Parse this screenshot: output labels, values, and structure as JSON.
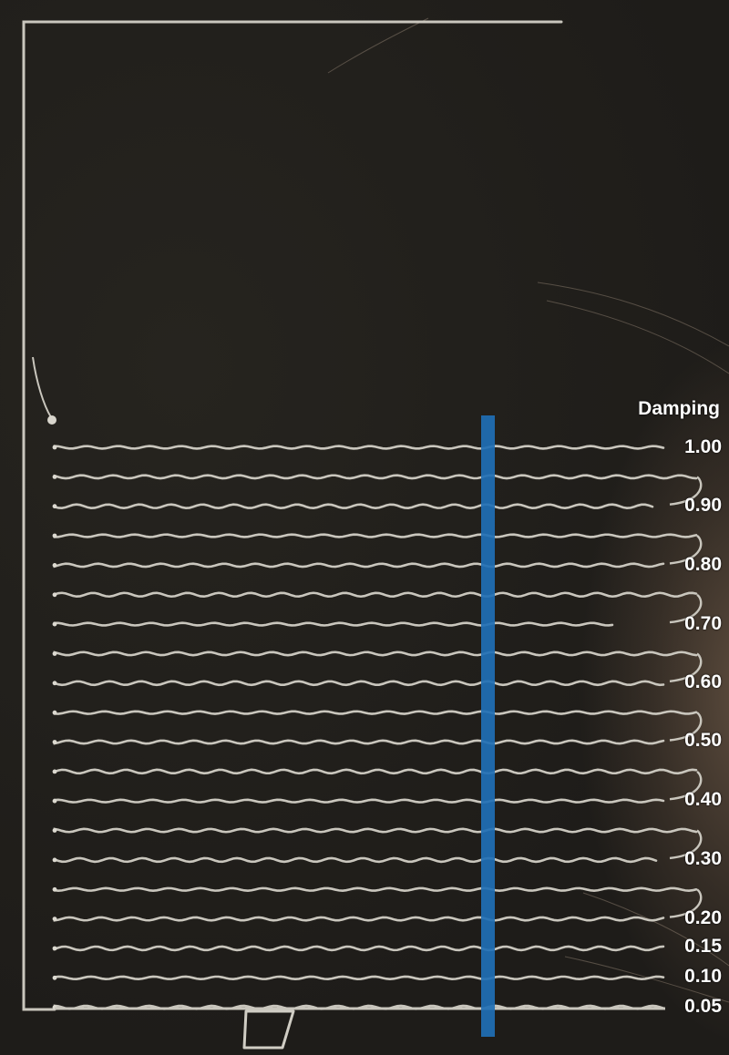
{
  "legend": {
    "title": "Damping",
    "values": [
      "1.00",
      "0.90",
      "0.80",
      "0.70",
      "0.60",
      "0.50",
      "0.40",
      "0.30",
      "0.20",
      "0.15",
      "0.10",
      "0.05"
    ]
  },
  "colors": {
    "background": "#201e1b",
    "filament": "#c9c6bd",
    "marker": "#1f6fb5",
    "label": "#ffffff"
  },
  "print_line_count": 20
}
